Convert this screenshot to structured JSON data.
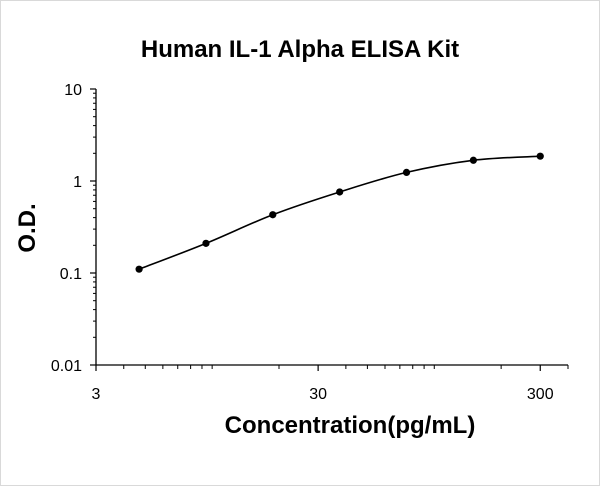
{
  "chart_data": {
    "type": "scatter",
    "title": "Human IL-1 Alpha  ELISA Kit",
    "xlabel": "Concentration(pg/mL)",
    "ylabel": "O.D.",
    "x_scale": "log",
    "y_scale": "log",
    "xlim": [
      3,
      400
    ],
    "ylim": [
      0.01,
      10
    ],
    "x_ticks": [
      3,
      30,
      300
    ],
    "y_ticks": [
      0.01,
      0.1,
      1,
      10
    ],
    "x_tick_labels": [
      "3",
      "30",
      "300"
    ],
    "y_tick_labels": [
      "0.01",
      "0.1",
      "1",
      "10"
    ],
    "grid": false,
    "legend": "none",
    "series": [
      {
        "x": [
          4.69,
          9.38,
          18.75,
          37.5,
          75,
          150,
          300
        ],
        "y": [
          0.11,
          0.21,
          0.43,
          0.76,
          1.24,
          1.68,
          1.86
        ],
        "marker_color": "#000000",
        "line": "smooth"
      }
    ]
  }
}
